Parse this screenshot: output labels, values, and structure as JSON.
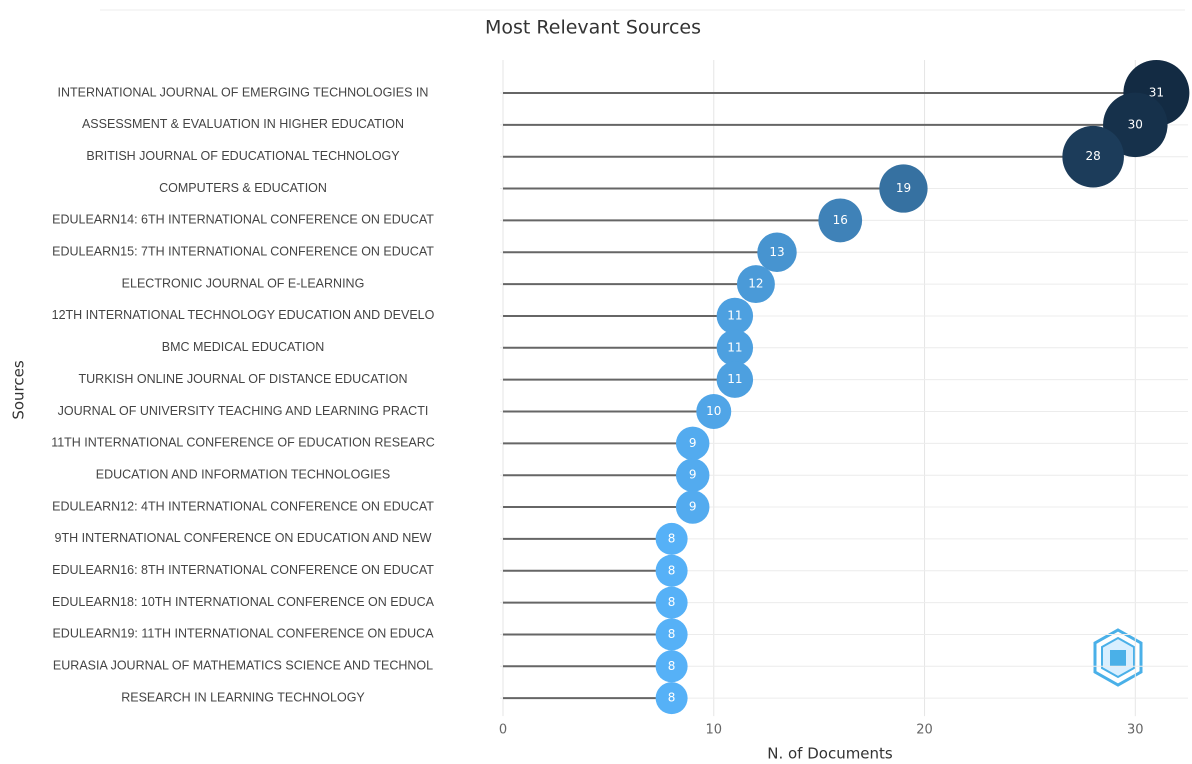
{
  "chart_data": {
    "type": "lollipop",
    "title": "Most Relevant Sources",
    "x_label": "N. of Documents",
    "y_label": "Sources",
    "categories": [
      "INTERNATIONAL JOURNAL OF EMERGING TECHNOLOGIES IN",
      "ASSESSMENT & EVALUATION IN HIGHER EDUCATION",
      "BRITISH JOURNAL OF EDUCATIONAL TECHNOLOGY",
      "COMPUTERS & EDUCATION",
      "EDULEARN14: 6TH INTERNATIONAL CONFERENCE ON EDUCAT",
      "EDULEARN15: 7TH INTERNATIONAL CONFERENCE ON EDUCAT",
      "ELECTRONIC JOURNAL OF E-LEARNING",
      "12TH INTERNATIONAL TECHNOLOGY EDUCATION AND DEVELO",
      "BMC MEDICAL EDUCATION",
      "TURKISH ONLINE JOURNAL OF DISTANCE EDUCATION",
      "JOURNAL OF UNIVERSITY TEACHING AND LEARNING PRACTI",
      "11TH INTERNATIONAL CONFERENCE OF EDUCATION RESEARC",
      "EDUCATION AND INFORMATION TECHNOLOGIES",
      "EDULEARN12: 4TH INTERNATIONAL CONFERENCE ON EDUCAT",
      "9TH INTERNATIONAL CONFERENCE ON EDUCATION AND NEW",
      "EDULEARN16: 8TH INTERNATIONAL CONFERENCE ON EDUCAT",
      "EDULEARN18: 10TH INTERNATIONAL CONFERENCE ON EDUCA",
      "EDULEARN19: 11TH INTERNATIONAL CONFERENCE ON EDUCA",
      "EURASIA JOURNAL OF MATHEMATICS SCIENCE AND TECHNOL",
      "RESEARCH IN LEARNING TECHNOLOGY"
    ],
    "values": [
      31,
      30,
      28,
      19,
      16,
      13,
      12,
      11,
      11,
      11,
      10,
      9,
      9,
      9,
      8,
      8,
      8,
      8,
      8,
      8
    ],
    "color_low": "#56B1F7",
    "color_high": "#132B43",
    "stem_color": "#666666",
    "xlim": [
      0,
      32.5
    ],
    "xticks": [
      0,
      10,
      20,
      30
    ],
    "grid": true
  }
}
